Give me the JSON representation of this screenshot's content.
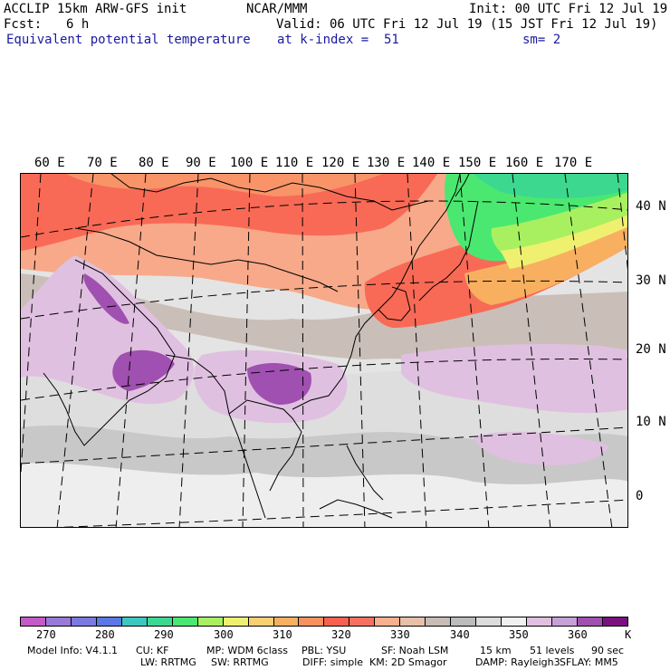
{
  "header": {
    "model": "ACCLIP 15km ARW-GFS init",
    "org": "NCAR/MMM",
    "init": "Init: 00 UTC Fri 12 Jul 19",
    "fcst_label": "Fcst:",
    "fcst_value": "6 h",
    "valid": "Valid: 06 UTC Fri 12 Jul 19 (15 JST Fri 12 Jul 19)",
    "field": "Equivalent potential temperature",
    "level": "at k-index =  51",
    "smooth": "sm= 2"
  },
  "map": {
    "lon_labels": [
      "60 E",
      "70 E",
      "80 E",
      "90 E",
      "100 E",
      "110 E",
      "120 E",
      "130 E",
      "140 E",
      "150 E",
      "160 E",
      "170 E"
    ],
    "lat_labels": [
      "40 N",
      "30 N",
      "20 N",
      "10 N",
      "0"
    ]
  },
  "colorbar": {
    "colors": [
      "#c45ac8",
      "#9a7ad8",
      "#7a7ae0",
      "#5a78e8",
      "#3cc8c0",
      "#3cd890",
      "#4ae870",
      "#a8f060",
      "#f0f070",
      "#f8d070",
      "#f8b060",
      "#f89060",
      "#f86050",
      "#f87060",
      "#f8b090",
      "#e8c0a8",
      "#c8bcb8",
      "#bcbcbc",
      "#dcdcdc",
      "#f0f0f0",
      "#e0c0e0",
      "#c8a0d8",
      "#a050b0",
      "#7a1080"
    ],
    "labels": [
      "270",
      "280",
      "290",
      "300",
      "310",
      "320",
      "330",
      "340",
      "350",
      "360"
    ],
    "unit": "K"
  },
  "footer": {
    "line1": [
      "Model Info: V4.1.1",
      "CU: KF",
      "MP: WDM 6class",
      "PBL: YSU",
      "SF: Noah LSM",
      "15 km",
      "51 levels",
      "90 sec"
    ],
    "line2": [
      "LW: RRTMG",
      "SW: RRTMG",
      "DIFF: simple",
      "KM: 2D Smagor",
      "DAMP: Rayleigh3",
      "SFLAY: MM5"
    ]
  }
}
